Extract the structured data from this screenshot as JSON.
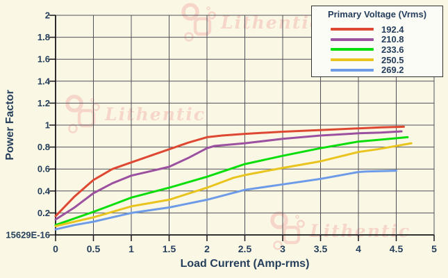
{
  "watermark": {
    "text": "Lithentic",
    "color": "#F6D6C9"
  },
  "colors": {
    "background": "#FAF8E4",
    "grid": "#50505A",
    "axis": "#16161A",
    "text": "#253E5C",
    "legend_bg": "#FCFCF7",
    "legend_border": "#2F2F2F"
  },
  "chart_data": {
    "type": "line",
    "xlabel": "Load Current (Amp-rms)",
    "ylabel": "Power Factor",
    "xlim": [
      0,
      5
    ],
    "ylim": [
      0,
      2
    ],
    "x_tick_step": 0.5,
    "y_tick_step": 0.2,
    "x_tick_labels": [
      "0",
      "0.5",
      "1",
      "1.5",
      "2",
      "2.5",
      "3",
      "3.5",
      "4",
      "4.5",
      "5"
    ],
    "y_tick_labels": [
      "2",
      "1.8",
      "1.6",
      "1.4",
      "1.2",
      "1",
      "0.8",
      "0.6",
      "0.4",
      "0.2",
      "15629E-16"
    ],
    "grid": true,
    "legend": {
      "title": "Primary Voltage (Vrms)",
      "position": "top-right"
    },
    "series": [
      {
        "name": "192.4",
        "color": "#DE4732",
        "points": [
          [
            0,
            0.17
          ],
          [
            0.25,
            0.35
          ],
          [
            0.5,
            0.5
          ],
          [
            0.75,
            0.6
          ],
          [
            1,
            0.66
          ],
          [
            1.25,
            0.72
          ],
          [
            1.5,
            0.78
          ],
          [
            1.75,
            0.84
          ],
          [
            2,
            0.89
          ],
          [
            2.2,
            0.905
          ],
          [
            2.5,
            0.92
          ],
          [
            3,
            0.94
          ],
          [
            3.5,
            0.955
          ],
          [
            4,
            0.97
          ],
          [
            4.3,
            0.98
          ],
          [
            4.6,
            0.985
          ]
        ]
      },
      {
        "name": "210.8",
        "color": "#9C50A0",
        "points": [
          [
            0,
            0.14
          ],
          [
            0.25,
            0.25
          ],
          [
            0.5,
            0.38
          ],
          [
            0.75,
            0.47
          ],
          [
            1,
            0.54
          ],
          [
            1.25,
            0.58
          ],
          [
            1.5,
            0.62
          ],
          [
            1.75,
            0.7
          ],
          [
            2,
            0.79
          ],
          [
            2.1,
            0.81
          ],
          [
            2.5,
            0.835
          ],
          [
            3,
            0.875
          ],
          [
            3.5,
            0.905
          ],
          [
            4,
            0.925
          ],
          [
            4.3,
            0.932
          ],
          [
            4.57,
            0.943
          ]
        ]
      },
      {
        "name": "233.6",
        "color": "#0ADE0A",
        "points": [
          [
            0,
            0.09
          ],
          [
            0.25,
            0.15
          ],
          [
            0.5,
            0.21
          ],
          [
            0.75,
            0.275
          ],
          [
            1,
            0.34
          ],
          [
            1.5,
            0.43
          ],
          [
            2,
            0.53
          ],
          [
            2.5,
            0.645
          ],
          [
            3,
            0.72
          ],
          [
            3.5,
            0.79
          ],
          [
            4,
            0.85
          ],
          [
            4.3,
            0.868
          ],
          [
            4.65,
            0.89
          ]
        ]
      },
      {
        "name": "250.5",
        "color": "#E9C41F",
        "points": [
          [
            0,
            0.08
          ],
          [
            0.25,
            0.12
          ],
          [
            0.5,
            0.16
          ],
          [
            0.75,
            0.21
          ],
          [
            1,
            0.26
          ],
          [
            1.5,
            0.32
          ],
          [
            2,
            0.43
          ],
          [
            2.35,
            0.52
          ],
          [
            2.5,
            0.545
          ],
          [
            3,
            0.61
          ],
          [
            3.5,
            0.67
          ],
          [
            4,
            0.755
          ],
          [
            4.25,
            0.78
          ],
          [
            4.7,
            0.835
          ]
        ]
      },
      {
        "name": "269.2",
        "color": "#6D9BE8",
        "points": [
          [
            0,
            0.05
          ],
          [
            0.25,
            0.09
          ],
          [
            0.5,
            0.12
          ],
          [
            0.75,
            0.16
          ],
          [
            1,
            0.2
          ],
          [
            1.5,
            0.25
          ],
          [
            2,
            0.32
          ],
          [
            2.5,
            0.41
          ],
          [
            3,
            0.46
          ],
          [
            3.5,
            0.51
          ],
          [
            4,
            0.573
          ],
          [
            4.1,
            0.578
          ],
          [
            4.5,
            0.585
          ]
        ]
      }
    ]
  }
}
